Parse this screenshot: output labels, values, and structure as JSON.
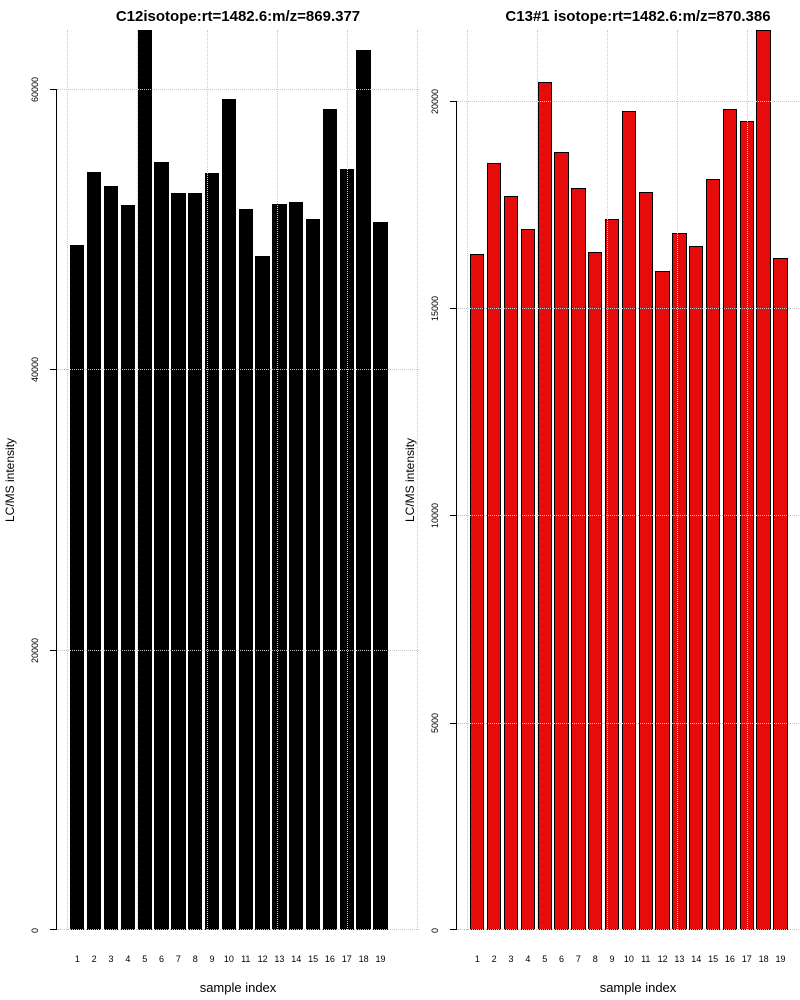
{
  "figure": {
    "background": "#ffffff",
    "grid_color": "#c9c9c9",
    "axis_color": "#000000"
  },
  "chart_data": [
    {
      "type": "bar",
      "title": "C12isotope:rt=1482.6:m/z=869.377",
      "xlabel": "sample index",
      "ylabel": "LC/MS intensity",
      "bar_color": "#000000",
      "bar_border_color": "#000000",
      "grid": true,
      "legend_position": "none",
      "categories": [
        "1",
        "2",
        "3",
        "4",
        "5",
        "6",
        "7",
        "8",
        "9",
        "10",
        "11",
        "12",
        "13",
        "14",
        "15",
        "16",
        "17",
        "18",
        "19"
      ],
      "values": [
        48900,
        54100,
        53100,
        51700,
        64200,
        54800,
        52600,
        52600,
        54000,
        59300,
        51400,
        48100,
        51800,
        51900,
        50700,
        58600,
        54300,
        62800,
        50500
      ],
      "yticks": [
        0,
        20000,
        40000,
        60000
      ],
      "ylim": [
        0,
        64200
      ]
    },
    {
      "type": "bar",
      "title": "C13#1 isotope:rt=1482.6:m/z=870.386",
      "xlabel": "sample index",
      "ylabel": "LC/MS intensity",
      "bar_color": "#e60c0c",
      "bar_border_color": "#000000",
      "grid": true,
      "legend_position": "none",
      "categories": [
        "1",
        "2",
        "3",
        "4",
        "5",
        "6",
        "7",
        "8",
        "9",
        "10",
        "11",
        "12",
        "13",
        "14",
        "15",
        "16",
        "17",
        "18",
        "19"
      ],
      "values": [
        16300,
        18500,
        17700,
        16900,
        20450,
        18750,
        17900,
        16350,
        17150,
        19750,
        17800,
        15900,
        16800,
        16500,
        18100,
        19800,
        19500,
        21700,
        16200
      ],
      "yticks": [
        0,
        5000,
        10000,
        15000,
        20000
      ],
      "ylim": [
        0,
        21700
      ]
    }
  ]
}
